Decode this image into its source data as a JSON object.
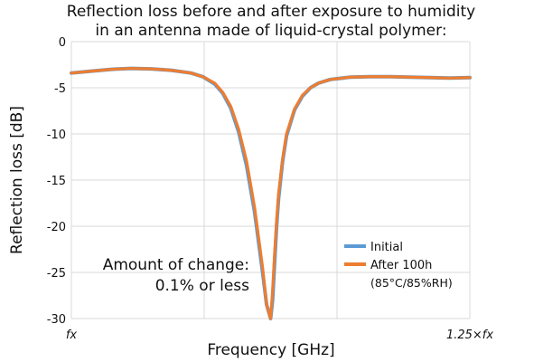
{
  "chart_data": {
    "type": "line",
    "title": [
      "Reflection loss before and after exposure to humidity",
      "in an antenna made of liquid-crystal polymer:"
    ],
    "xlabel": "Frequency [GHz]",
    "ylabel": "Reflection loss [dB]",
    "x_tick_labels": {
      "start": "fx",
      "end": "1.25×fx"
    },
    "xlim": [
      0,
      1
    ],
    "ylim": [
      -30,
      0
    ],
    "y_ticks": [
      0,
      -5,
      -10,
      -15,
      -20,
      -25,
      -30
    ],
    "grid": true,
    "legend_position": "lower-right",
    "annotation": [
      "Amount of change:",
      "0.1% or less"
    ],
    "legend_note": "(85°C/85%RH)",
    "series": [
      {
        "name": "Initial",
        "color": "#5b9bd5",
        "x": [
          0,
          0.05,
          0.1,
          0.15,
          0.2,
          0.25,
          0.3,
          0.33,
          0.36,
          0.38,
          0.4,
          0.42,
          0.44,
          0.46,
          0.48,
          0.49,
          0.5,
          0.505,
          0.51,
          0.515,
          0.52,
          0.53,
          0.54,
          0.56,
          0.58,
          0.6,
          0.62,
          0.65,
          0.7,
          0.75,
          0.8,
          0.85,
          0.9,
          0.95,
          1.0
        ],
        "y": [
          -3.4,
          -3.2,
          -3.0,
          -2.9,
          -2.95,
          -3.1,
          -3.4,
          -3.8,
          -4.6,
          -5.6,
          -7.2,
          -9.8,
          -13.5,
          -18.5,
          -25.0,
          -28.5,
          -30,
          -28.0,
          -24.0,
          -20.0,
          -17.0,
          -13.0,
          -10.2,
          -7.4,
          -5.9,
          -5.0,
          -4.5,
          -4.1,
          -3.85,
          -3.8,
          -3.8,
          -3.85,
          -3.9,
          -3.95,
          -3.9
        ]
      },
      {
        "name": "After 100h",
        "color": "#ed7d31",
        "x": [
          0,
          0.05,
          0.1,
          0.15,
          0.2,
          0.25,
          0.3,
          0.33,
          0.36,
          0.38,
          0.4,
          0.42,
          0.44,
          0.46,
          0.48,
          0.49,
          0.5,
          0.505,
          0.51,
          0.515,
          0.52,
          0.53,
          0.54,
          0.56,
          0.58,
          0.6,
          0.62,
          0.65,
          0.7,
          0.75,
          0.8,
          0.85,
          0.9,
          0.95,
          1.0
        ],
        "y": [
          -3.4,
          -3.2,
          -3.0,
          -2.9,
          -2.95,
          -3.1,
          -3.4,
          -3.8,
          -4.5,
          -5.5,
          -7.0,
          -9.5,
          -13.0,
          -18.0,
          -24.5,
          -28.5,
          -30,
          -27.0,
          -23.0,
          -19.5,
          -16.5,
          -12.8,
          -10.0,
          -7.3,
          -5.8,
          -5.0,
          -4.5,
          -4.1,
          -3.85,
          -3.8,
          -3.8,
          -3.85,
          -3.9,
          -3.95,
          -3.9
        ]
      }
    ]
  }
}
